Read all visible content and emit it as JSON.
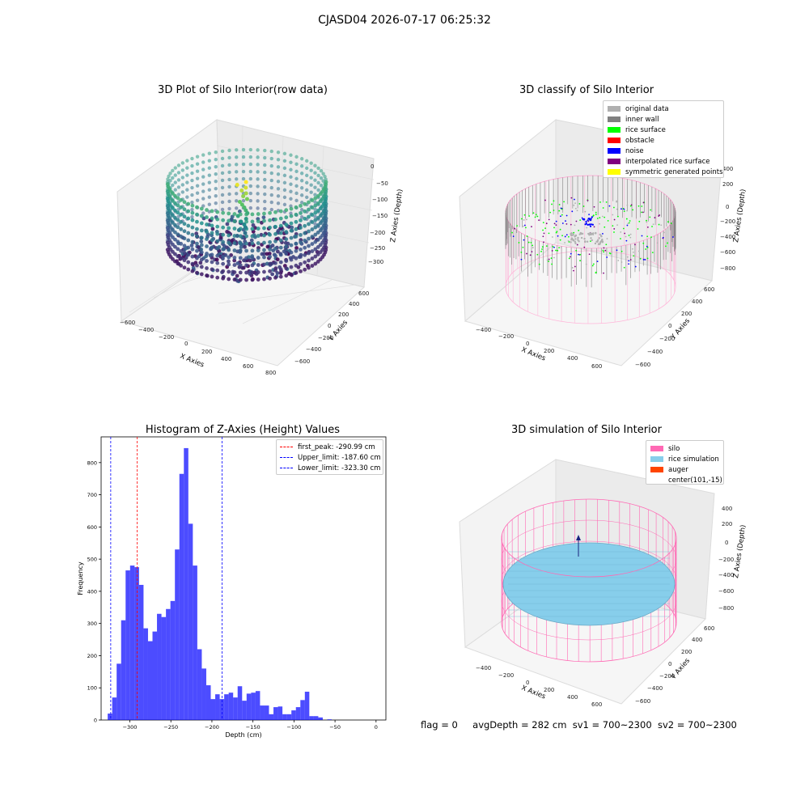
{
  "suptitle": "CJASD04 2026-07-17 06:25:32",
  "footer": {
    "flag": "flag = 0",
    "avg_depth": "avgDepth = 282 cm",
    "sv1": "sv1 = 700~2300",
    "sv2": "sv2 = 700~2300"
  },
  "panels": {
    "raw": {
      "title": "3D Plot of Silo Interior(row data)",
      "xlabel": "X Axies",
      "ylabel": "Y Axies",
      "zlabel": "Z Axies (Depth)",
      "xticks": [
        "−600",
        "−400",
        "−200",
        "0",
        "200",
        "400",
        "600",
        "800"
      ],
      "yticks": [
        "−600",
        "−400",
        "−200",
        "0",
        "200",
        "400",
        "600"
      ],
      "zticks": [
        "0",
        "−50",
        "−100",
        "−150",
        "−200",
        "−250",
        "−300"
      ]
    },
    "classify": {
      "title": "3D classify of Silo Interior",
      "xlabel": "X Axies",
      "ylabel": "Y Axies",
      "zlabel": "Z Axies (Depth)",
      "xticks": [
        "−400",
        "−200",
        "0",
        "200",
        "400",
        "600"
      ],
      "yticks": [
        "−600",
        "−400",
        "−200",
        "0",
        "200",
        "400",
        "600"
      ],
      "zticks": [
        "400",
        "200",
        "0",
        "−200",
        "−400",
        "−600",
        "−800"
      ],
      "legend": [
        {
          "label": "original data",
          "color": "#b0b0b0"
        },
        {
          "label": "inner wall",
          "color": "#808080"
        },
        {
          "label": "rice surface",
          "color": "#00ff00"
        },
        {
          "label": "obstacle",
          "color": "#ff0000"
        },
        {
          "label": "noise",
          "color": "#0000ff"
        },
        {
          "label": "interpolated rice surface",
          "color": "#800080"
        },
        {
          "label": "symmetric generated points",
          "color": "#ffff00"
        }
      ]
    },
    "simulation": {
      "title": "3D simulation of Silo Interior",
      "xlabel": "X Axies",
      "ylabel": "Y Axies",
      "zlabel": "Z Axies (Depth)",
      "xticks": [
        "−400",
        "−200",
        "0",
        "200",
        "400",
        "600"
      ],
      "yticks": [
        "−600",
        "−400",
        "−200",
        "0",
        "200",
        "400",
        "600"
      ],
      "zticks": [
        "400",
        "200",
        "0",
        "−200",
        "−400",
        "−600",
        "−800"
      ],
      "legend": [
        {
          "label": "silo",
          "color": "#ff69b4"
        },
        {
          "label": "rice simulation",
          "color": "#87ceeb"
        },
        {
          "label": "auger",
          "color": "#ff4500"
        },
        {
          "label": "center(101,-15)",
          "color": "#ffffff"
        }
      ]
    }
  },
  "chart_data": {
    "type": "bar",
    "title": "Histogram of Z-Axies (Height) Values",
    "xlabel": "Depth (cm)",
    "ylabel": "Frequency",
    "xlim": [
      -335,
      12
    ],
    "ylim": [
      0,
      880
    ],
    "xticks": [
      -300,
      -250,
      -200,
      -150,
      -100,
      -50,
      0
    ],
    "yticks": [
      0,
      100,
      200,
      300,
      400,
      500,
      600,
      700,
      800
    ],
    "bar_color": "#0000ff",
    "bin_start": -327,
    "bin_width": 5.46,
    "values": [
      20,
      70,
      175,
      310,
      465,
      480,
      475,
      420,
      285,
      245,
      275,
      330,
      320,
      345,
      370,
      530,
      765,
      845,
      610,
      480,
      220,
      160,
      108,
      65,
      80,
      65,
      80,
      85,
      70,
      105,
      60,
      82,
      85,
      90,
      45,
      45,
      18,
      40,
      42,
      18,
      18,
      30,
      40,
      62,
      88,
      12,
      12,
      8,
      0,
      2
    ],
    "vlines": [
      {
        "label": "first_peak: -290.99 cm",
        "x": -290.99,
        "color": "#ff0000"
      },
      {
        "label": "Upper_limit: -187.60 cm",
        "x": -187.6,
        "color": "#0000ff"
      },
      {
        "label": "Lower_limit: -323.30 cm",
        "x": -323.3,
        "color": "#0000ff"
      }
    ],
    "legend_position": "upper right"
  }
}
